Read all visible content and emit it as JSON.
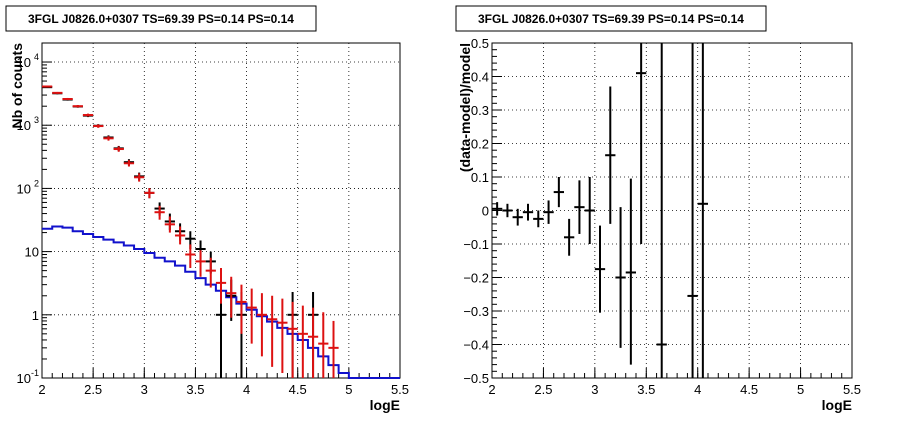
{
  "chart_data": [
    {
      "type": "scatter",
      "title": "3FGL J0826.0+0307 TS=69.39 PS=0.14 PS=0.14",
      "xlabel": "logE",
      "ylabel": "Nb of counts",
      "xlim": [
        2,
        5.5
      ],
      "ylim": [
        0.1,
        20000
      ],
      "yscale": "log",
      "grid": true,
      "x_ticks": [
        "2",
        "2.5",
        "3",
        "3.5",
        "4",
        "4.5",
        "5",
        "5.5"
      ],
      "y_ticks": [
        {
          "label": "10^{-1}",
          "base": "10",
          "exp": "-1",
          "value": 0.1
        },
        {
          "label": "1",
          "base": "1",
          "exp": "",
          "value": 1
        },
        {
          "label": "10",
          "base": "10",
          "exp": "",
          "value": 10
        },
        {
          "label": "10^{2}",
          "base": "10",
          "exp": "2",
          "value": 100
        },
        {
          "label": "10^{3}",
          "base": "10",
          "exp": "3",
          "value": 1000
        },
        {
          "label": "10^{4}",
          "base": "10",
          "exp": "4",
          "value": 10000
        }
      ],
      "series": [
        {
          "color": "#000000",
          "points": [
            {
              "x": 2.05,
              "y": 4000,
              "lo": 3880,
              "hi": 4120
            },
            {
              "x": 2.15,
              "y": 3200,
              "lo": 3090,
              "hi": 3310
            },
            {
              "x": 2.25,
              "y": 2550,
              "lo": 2450,
              "hi": 2650
            },
            {
              "x": 2.35,
              "y": 1980,
              "lo": 1890,
              "hi": 2070
            },
            {
              "x": 2.45,
              "y": 1420,
              "lo": 1345,
              "hi": 1495
            },
            {
              "x": 2.55,
              "y": 980,
              "lo": 920,
              "hi": 1040
            },
            {
              "x": 2.65,
              "y": 640,
              "lo": 590,
              "hi": 690
            },
            {
              "x": 2.75,
              "y": 430,
              "lo": 390,
              "hi": 470
            },
            {
              "x": 2.85,
              "y": 260,
              "lo": 230,
              "hi": 290
            },
            {
              "x": 2.95,
              "y": 155,
              "lo": 133,
              "hi": 178
            },
            {
              "x": 3.05,
              "y": 85,
              "lo": 70,
              "hi": 101
            },
            {
              "x": 3.15,
              "y": 48,
              "lo": 37,
              "hi": 60
            },
            {
              "x": 3.25,
              "y": 30,
              "lo": 22,
              "hi": 40
            },
            {
              "x": 3.35,
              "y": 21,
              "lo": 15,
              "hi": 28
            },
            {
              "x": 3.45,
              "y": 16,
              "lo": 11,
              "hi": 21
            },
            {
              "x": 3.55,
              "y": 11,
              "lo": 7.5,
              "hi": 15
            },
            {
              "x": 3.65,
              "y": 7,
              "lo": 4.5,
              "hi": 10
            },
            {
              "x": 3.75,
              "y": 1,
              "lo": 0.1,
              "hi": 2.3
            },
            {
              "x": 3.85,
              "y": 2,
              "lo": 0.8,
              "hi": 3.6
            },
            {
              "x": 3.95,
              "y": 1,
              "lo": 0.1,
              "hi": 2.3
            },
            {
              "x": 4.45,
              "y": 1,
              "lo": 0.1,
              "hi": 2.3
            },
            {
              "x": 4.65,
              "y": 1,
              "lo": 0.1,
              "hi": 2.3
            }
          ]
        },
        {
          "color": "#dd1111",
          "points": [
            {
              "x": 2.05,
              "y": 4100,
              "lo": 3980,
              "hi": 4220
            },
            {
              "x": 2.15,
              "y": 3250,
              "lo": 3140,
              "hi": 3360
            },
            {
              "x": 2.25,
              "y": 2600,
              "lo": 2500,
              "hi": 2700
            },
            {
              "x": 2.35,
              "y": 2000,
              "lo": 1910,
              "hi": 2090
            },
            {
              "x": 2.45,
              "y": 1450,
              "lo": 1375,
              "hi": 1525
            },
            {
              "x": 2.55,
              "y": 970,
              "lo": 910,
              "hi": 1030
            },
            {
              "x": 2.65,
              "y": 620,
              "lo": 570,
              "hi": 670
            },
            {
              "x": 2.75,
              "y": 420,
              "lo": 380,
              "hi": 460
            },
            {
              "x": 2.85,
              "y": 250,
              "lo": 222,
              "hi": 280
            },
            {
              "x": 2.95,
              "y": 150,
              "lo": 128,
              "hi": 173
            },
            {
              "x": 3.05,
              "y": 85,
              "lo": 70,
              "hi": 101
            },
            {
              "x": 3.15,
              "y": 42,
              "lo": 32,
              "hi": 53
            },
            {
              "x": 3.25,
              "y": 27,
              "lo": 20,
              "hi": 36
            },
            {
              "x": 3.35,
              "y": 18,
              "lo": 13,
              "hi": 25
            },
            {
              "x": 3.45,
              "y": 9,
              "lo": 5.5,
              "hi": 13
            },
            {
              "x": 3.55,
              "y": 7,
              "lo": 4,
              "hi": 10.5
            },
            {
              "x": 3.65,
              "y": 5,
              "lo": 2.7,
              "hi": 8
            },
            {
              "x": 3.75,
              "y": 3.2,
              "lo": 1.5,
              "hi": 5.5
            },
            {
              "x": 3.85,
              "y": 2.2,
              "lo": 0.9,
              "hi": 4
            },
            {
              "x": 3.95,
              "y": 1.6,
              "lo": 0.5,
              "hi": 3
            },
            {
              "x": 4.05,
              "y": 1.3,
              "lo": 0.35,
              "hi": 2.6
            },
            {
              "x": 4.15,
              "y": 1,
              "lo": 0.22,
              "hi": 2.2
            },
            {
              "x": 4.25,
              "y": 0.85,
              "lo": 0.15,
              "hi": 2
            },
            {
              "x": 4.35,
              "y": 0.75,
              "lo": 0.12,
              "hi": 1.8
            },
            {
              "x": 4.45,
              "y": 0.6,
              "lo": 0.1,
              "hi": 1.6
            },
            {
              "x": 4.55,
              "y": 0.5,
              "lo": 0.1,
              "hi": 1.4
            },
            {
              "x": 4.65,
              "y": 0.45,
              "lo": 0.1,
              "hi": 1.3
            },
            {
              "x": 4.75,
              "y": 0.35,
              "lo": 0.1,
              "hi": 1.1
            },
            {
              "x": 4.85,
              "y": 0.3,
              "lo": 0.1,
              "hi": 0.8
            }
          ]
        }
      ],
      "step_series": [
        {
          "color": "#1111cc",
          "bins": [
            2.0,
            2.1,
            2.2,
            2.3,
            2.4,
            2.5,
            2.6,
            2.7,
            2.8,
            2.9,
            3.0,
            3.1,
            3.2,
            3.3,
            3.4,
            3.5,
            3.6,
            3.7,
            3.8,
            3.9,
            4.0,
            4.1,
            4.2,
            4.3,
            4.4,
            4.5,
            4.6,
            4.7,
            4.8,
            4.9,
            5.0,
            5.1,
            5.2,
            5.3,
            5.4,
            5.5
          ],
          "values": [
            23,
            25,
            24,
            21,
            19,
            17,
            15.5,
            14,
            12.5,
            11,
            9.5,
            8,
            7,
            6,
            4.8,
            3.8,
            3,
            2.4,
            1.9,
            1.5,
            1.2,
            0.95,
            0.78,
            0.62,
            0.5,
            0.4,
            0.3,
            0.22,
            0.16,
            0.12,
            0.1,
            0.1,
            0.1,
            0.1,
            0.1
          ]
        }
      ]
    },
    {
      "type": "scatter",
      "title": "3FGL J0826.0+0307 TS=69.39 PS=0.14 PS=0.14",
      "xlabel": "logE",
      "ylabel": "(data-model)/model",
      "xlim": [
        2,
        5.5
      ],
      "ylim": [
        -0.5,
        0.5
      ],
      "yscale": "linear",
      "grid": true,
      "x_ticks": [
        "2",
        "2.5",
        "3",
        "3.5",
        "4",
        "4.5",
        "5",
        "5.5"
      ],
      "y_ticks": [
        "0.5",
        "0.4",
        "0.3",
        "0.2",
        "0.1",
        "0",
        "-0.1",
        "-0.2",
        "-0.3",
        "-0.4",
        "-0.5"
      ],
      "y_tick_labels": [
        "0.5",
        "0.4",
        "0.3",
        "0.2",
        "0.1",
        "0",
        "−0.1",
        "−0.2",
        "−0.3",
        "−0.4",
        "−0.5"
      ],
      "series": [
        {
          "color": "#000000",
          "points": [
            {
              "x": 2.05,
              "y": 0.005,
              "lo": -0.015,
              "hi": 0.025
            },
            {
              "x": 2.15,
              "y": 0.0,
              "lo": -0.02,
              "hi": 0.02
            },
            {
              "x": 2.25,
              "y": -0.02,
              "lo": -0.045,
              "hi": 0.005
            },
            {
              "x": 2.35,
              "y": -0.005,
              "lo": -0.03,
              "hi": 0.02
            },
            {
              "x": 2.45,
              "y": -0.025,
              "lo": -0.05,
              "hi": 0.0
            },
            {
              "x": 2.55,
              "y": -0.005,
              "lo": -0.04,
              "hi": 0.03
            },
            {
              "x": 2.65,
              "y": 0.055,
              "lo": 0.01,
              "hi": 0.1
            },
            {
              "x": 2.75,
              "y": -0.08,
              "lo": -0.135,
              "hi": -0.025
            },
            {
              "x": 2.85,
              "y": 0.01,
              "lo": -0.07,
              "hi": 0.09
            },
            {
              "x": 2.95,
              "y": 0.0,
              "lo": -0.1,
              "hi": 0.1
            },
            {
              "x": 3.05,
              "y": -0.175,
              "lo": -0.305,
              "hi": -0.045
            },
            {
              "x": 3.15,
              "y": 0.165,
              "lo": -0.04,
              "hi": 0.37
            },
            {
              "x": 3.25,
              "y": -0.2,
              "lo": -0.41,
              "hi": 0.01
            },
            {
              "x": 3.35,
              "y": -0.185,
              "lo": -0.46,
              "hi": 0.095
            },
            {
              "x": 3.45,
              "y": 0.41,
              "lo": -0.1,
              "hi": 0.5
            },
            {
              "x": 3.65,
              "y": -0.4,
              "lo": -0.5,
              "hi": 0.5
            },
            {
              "x": 3.95,
              "y": -0.255,
              "lo": -0.5,
              "hi": 0.5
            },
            {
              "x": 4.05,
              "y": 0.02,
              "lo": -0.5,
              "hi": 0.5
            }
          ]
        }
      ]
    }
  ]
}
